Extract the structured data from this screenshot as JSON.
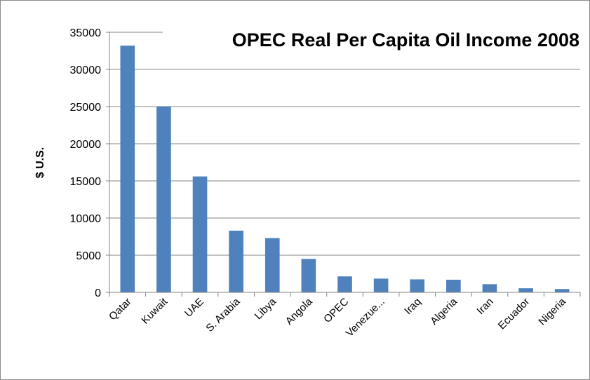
{
  "chart_data": {
    "type": "bar",
    "title": "OPEC Real Per Capita Oil Income 2008",
    "ylabel": "$ U.S.",
    "xlabel": "",
    "categories": [
      "Qatar",
      "Kuwait",
      "UAE",
      "S. Arabia",
      "Libya",
      "Angola",
      "OPEC",
      "Venezue...",
      "Iraq",
      "Algeria",
      "Iran",
      "Ecuador",
      "Nigeria"
    ],
    "values": [
      33200,
      25000,
      15600,
      8300,
      7300,
      4500,
      2150,
      1850,
      1750,
      1700,
      1100,
      550,
      450
    ],
    "ylim": [
      0,
      35000
    ],
    "yticks": [
      "0",
      "5000",
      "10000",
      "15000",
      "20000",
      "25000",
      "30000",
      "35000"
    ],
    "grid": true,
    "legend": "none",
    "colors": {
      "bar": "#4f81bd",
      "grid": "#868686",
      "axis": "#868686"
    }
  }
}
